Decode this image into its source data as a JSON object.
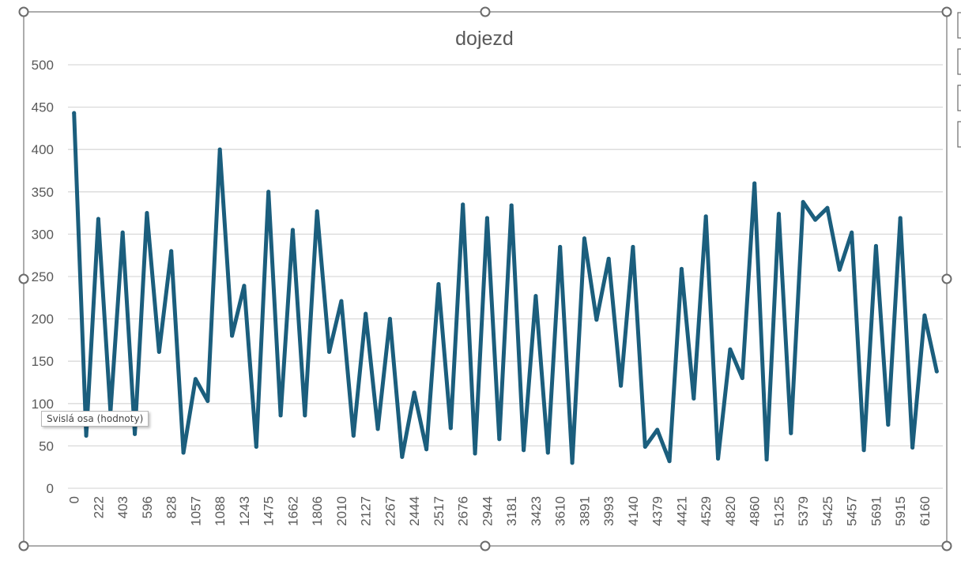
{
  "chart_data": {
    "type": "line",
    "title": "dojezd",
    "xlabel": "",
    "ylabel": "",
    "ylim": [
      0,
      500
    ],
    "yticks": [
      0,
      50,
      100,
      150,
      200,
      250,
      300,
      350,
      400,
      450,
      500
    ],
    "grid": true,
    "legend": "none",
    "color": "#1b5e7d",
    "x_labels": [
      "0",
      "",
      "222",
      "",
      "403",
      "",
      "596",
      "",
      "828",
      "",
      "1057",
      "",
      "1088",
      "",
      "1243",
      "",
      "1475",
      "",
      "1662",
      "",
      "1806",
      "",
      "2010",
      "",
      "2127",
      "",
      "2267",
      "",
      "2444",
      "",
      "2517",
      "",
      "2676",
      "",
      "2944",
      "",
      "3181",
      "",
      "3423",
      "",
      "3610",
      "",
      "3891",
      "",
      "3993",
      "",
      "4140",
      "",
      "4379",
      "",
      "4421",
      "",
      "4529",
      "",
      "4820",
      "",
      "4860",
      "",
      "5125",
      "",
      "5379",
      "",
      "5425",
      "",
      "5457",
      "",
      "5691",
      "",
      "5915",
      "",
      "6160",
      ""
    ],
    "values": [
      443,
      62,
      318,
      90,
      302,
      64,
      325,
      161,
      280,
      42,
      129,
      103,
      400,
      180,
      239,
      49,
      350,
      86,
      305,
      86,
      327,
      161,
      221,
      62,
      206,
      70,
      200,
      37,
      113,
      46,
      241,
      71,
      335,
      41,
      319,
      58,
      334,
      45,
      227,
      42,
      285,
      30,
      295,
      199,
      271,
      121,
      285,
      49,
      69,
      32,
      259,
      106,
      321,
      35,
      164,
      130,
      360,
      34,
      324,
      65,
      338,
      317,
      331,
      258,
      302,
      45,
      286,
      75,
      319,
      48,
      204,
      138
    ]
  },
  "tooltip": "Svislá osa (hodnoty)"
}
